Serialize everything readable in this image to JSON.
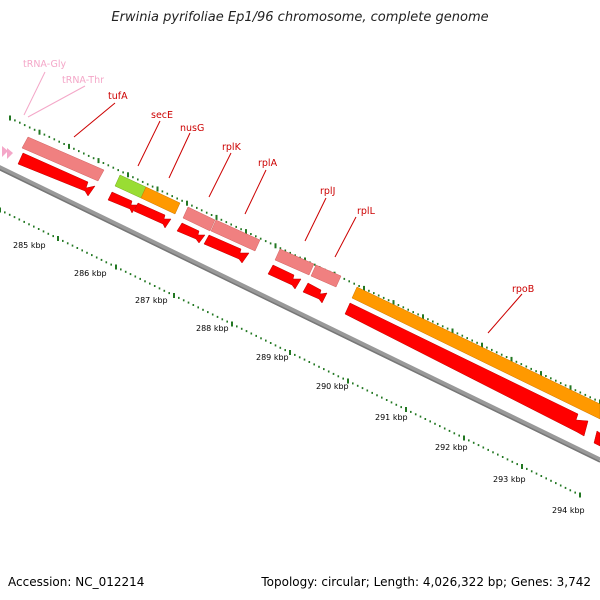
{
  "title": "Erwinia pyrifoliae Ep1/96 chromosome, complete genome",
  "footer": {
    "accession": "Accession: NC_012214",
    "summary": "Topology: circular; Length: 4,026,322 bp; Genes: 3,742"
  },
  "colors": {
    "cds": "#ff0000",
    "gene": "#f08080",
    "trna": "#f4a7c8",
    "operon_green": "#99dd33",
    "operon_orange": "#ff9900",
    "backbone": "#888888",
    "gene_label": "#cc0000",
    "trna_label": "#f4a7c8",
    "tick": "#227722"
  },
  "ruler": {
    "unit": "kbp",
    "labels": [
      "285 kbp",
      "286 kbp",
      "287 kbp",
      "288 kbp",
      "289 kbp",
      "290 kbp",
      "291 kbp",
      "292 kbp",
      "293 kbp",
      "294 kbp"
    ]
  },
  "genes": [
    {
      "name": "tRNA-Gly",
      "type": "trna"
    },
    {
      "name": "tRNA-Thr",
      "type": "trna"
    },
    {
      "name": "tufA",
      "type": "cds"
    },
    {
      "name": "secE",
      "type": "cds"
    },
    {
      "name": "nusG",
      "type": "cds"
    },
    {
      "name": "rplK",
      "type": "cds"
    },
    {
      "name": "rplA",
      "type": "cds"
    },
    {
      "name": "rplJ",
      "type": "cds"
    },
    {
      "name": "rplL",
      "type": "cds"
    },
    {
      "name": "rpoB",
      "type": "cds"
    }
  ]
}
